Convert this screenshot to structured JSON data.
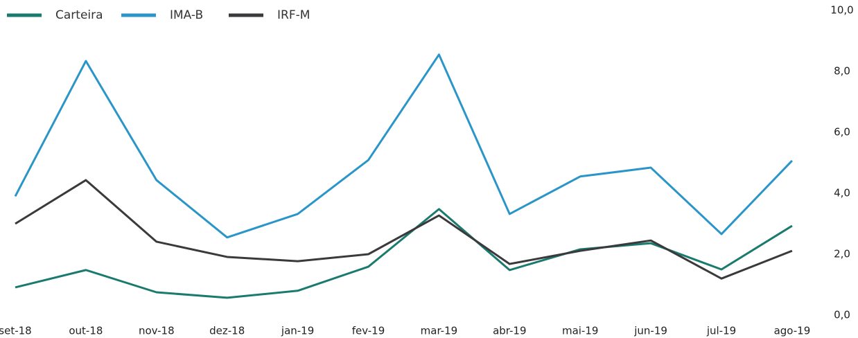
{
  "chart_data": {
    "type": "line",
    "categories": [
      "set-18",
      "out-18",
      "nov-18",
      "dez-18",
      "jan-19",
      "fev-19",
      "mar-19",
      "abr-19",
      "mai-19",
      "jun-19",
      "jul-19",
      "ago-19"
    ],
    "series": [
      {
        "name": "Carteira",
        "color": "#1a7a6e",
        "values": [
          0.91,
          1.48,
          0.75,
          0.57,
          0.8,
          1.59,
          3.48,
          1.48,
          2.16,
          2.36,
          1.5,
          2.93
        ]
      },
      {
        "name": "IMA-B",
        "color": "#2a95c8",
        "values": [
          3.9,
          8.34,
          4.43,
          2.55,
          3.32,
          5.09,
          8.55,
          3.32,
          4.55,
          4.84,
          2.66,
          5.07
        ]
      },
      {
        "name": "IRF-M",
        "color": "#3a3a3c",
        "values": [
          3.0,
          4.43,
          2.41,
          1.91,
          1.77,
          2.0,
          3.27,
          1.68,
          2.11,
          2.45,
          1.2,
          2.11
        ]
      }
    ],
    "ylim": [
      0,
      10
    ],
    "yticks": [
      {
        "value": 0,
        "label": "0,0"
      },
      {
        "value": 2,
        "label": "2,0"
      },
      {
        "value": 4,
        "label": "4,0"
      },
      {
        "value": 6,
        "label": "6,0"
      },
      {
        "value": 8,
        "label": "8,0"
      },
      {
        "value": 10,
        "label": "10,0"
      }
    ],
    "y_axis_side": "right",
    "legend": "top-left",
    "grid": false
  }
}
